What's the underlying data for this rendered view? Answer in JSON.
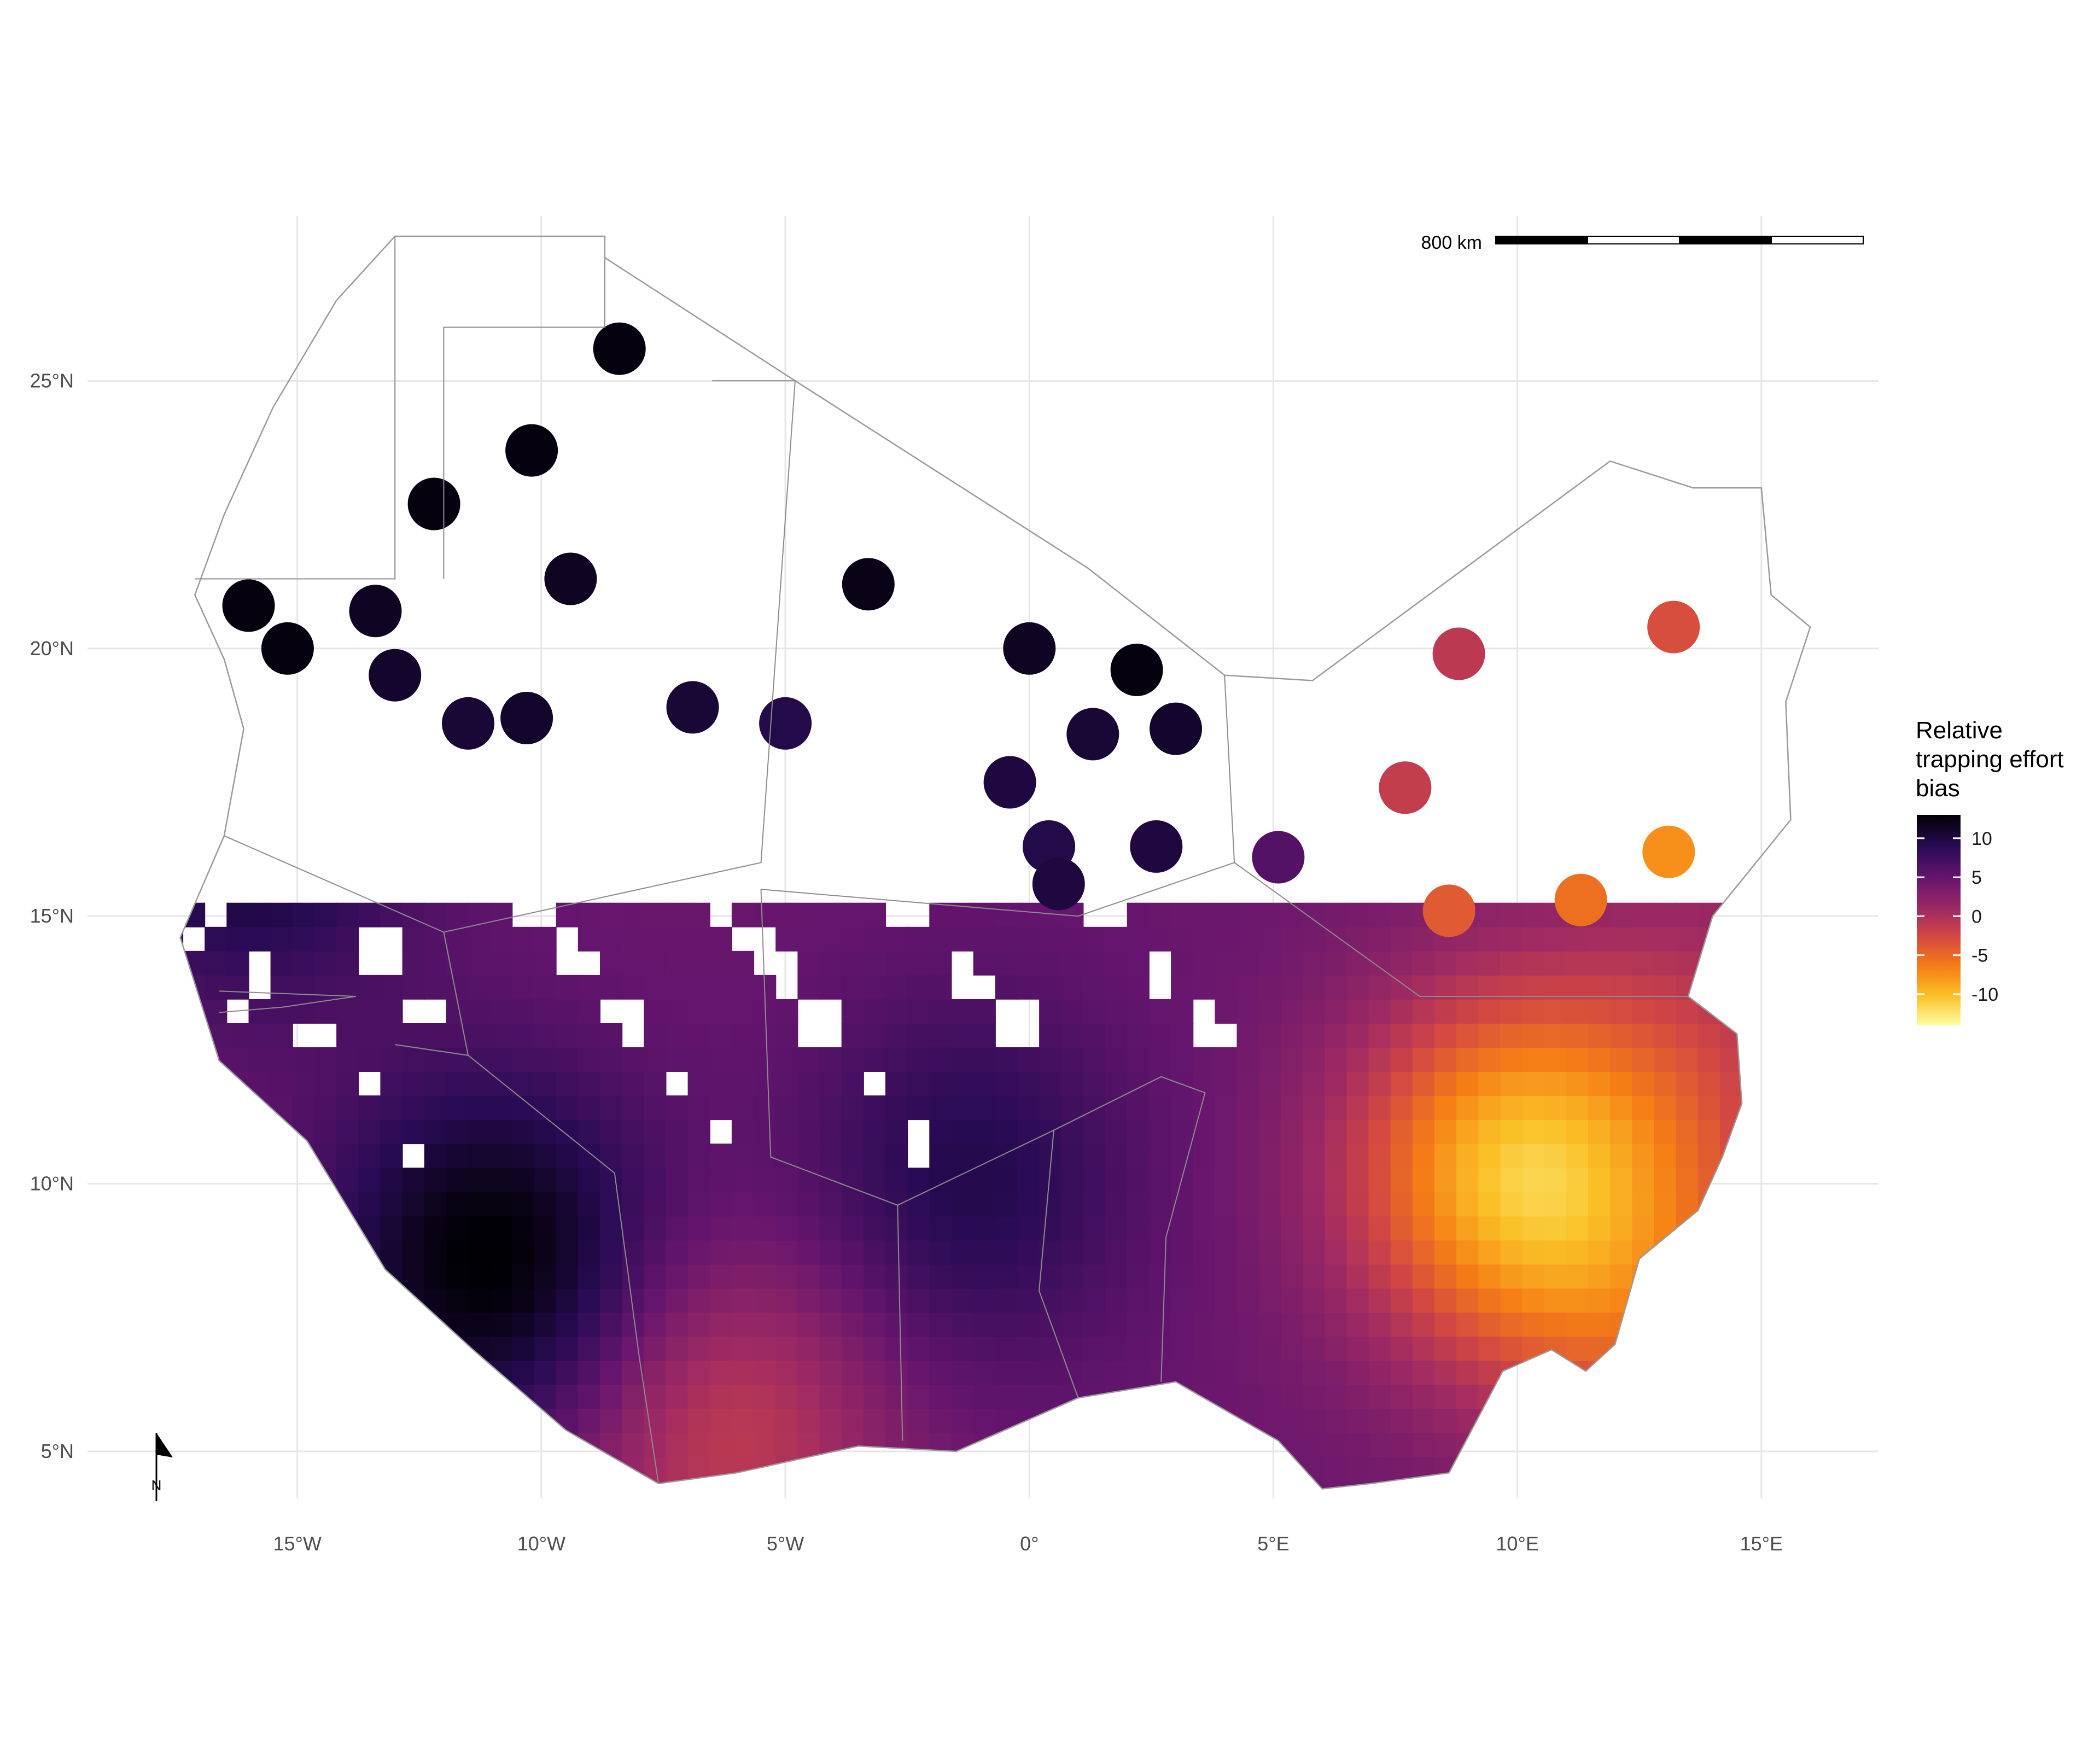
{
  "map": {
    "title": "",
    "x_axis": {
      "unit": "longitude",
      "ticks": [
        {
          "value": -15,
          "label": "15°W"
        },
        {
          "value": -10,
          "label": "10°W"
        },
        {
          "value": -5,
          "label": "5°W"
        },
        {
          "value": 0,
          "label": "0°"
        },
        {
          "value": 5,
          "label": "5°E"
        },
        {
          "value": 10,
          "label": "10°E"
        },
        {
          "value": 15,
          "label": "15°E"
        }
      ]
    },
    "y_axis": {
      "unit": "latitude",
      "ticks": [
        {
          "value": 25,
          "label": "25°N"
        },
        {
          "value": 20,
          "label": "20°N"
        },
        {
          "value": 15,
          "label": "15°N"
        },
        {
          "value": 10,
          "label": "10°N"
        },
        {
          "value": 5,
          "label": "5°N"
        }
      ]
    },
    "x_range": [
      -19.3,
      17.4
    ],
    "y_range": [
      3.1,
      29.1
    ],
    "grid": true,
    "colormap": "inferno",
    "legend": {
      "title_lines": [
        "Relative",
        "trapping effort",
        "bias"
      ],
      "ticks": [
        {
          "value": 10,
          "label": "10"
        },
        {
          "value": 5,
          "label": "5"
        },
        {
          "value": 0,
          "label": "0"
        },
        {
          "value": -5,
          "label": "-5"
        },
        {
          "value": -10,
          "label": "-10"
        }
      ],
      "range": [
        -14,
        13
      ],
      "placement": "right"
    },
    "scale_bar": {
      "label": "800 km"
    },
    "north_arrow": {
      "label": "N"
    },
    "bias_clusters": [
      {
        "lon": -8.4,
        "lat": 25.6,
        "value": 12.5
      },
      {
        "lon": -10.2,
        "lat": 23.7,
        "value": 12.5
      },
      {
        "lon": -12.2,
        "lat": 22.7,
        "value": 12.5
      },
      {
        "lon": -9.4,
        "lat": 21.3,
        "value": 11.5
      },
      {
        "lon": -3.3,
        "lat": 21.2,
        "value": 12.0
      },
      {
        "lon": -16.0,
        "lat": 20.8,
        "value": 12.5
      },
      {
        "lon": -13.4,
        "lat": 20.7,
        "value": 11.5
      },
      {
        "lon": -15.2,
        "lat": 20.0,
        "value": 12.5
      },
      {
        "lon": 0.0,
        "lat": 20.0,
        "value": 11.5
      },
      {
        "lon": 2.2,
        "lat": 19.6,
        "value": 12.5
      },
      {
        "lon": -13.0,
        "lat": 19.5,
        "value": 11.0
      },
      {
        "lon": -6.9,
        "lat": 18.9,
        "value": 10.5
      },
      {
        "lon": -10.3,
        "lat": 18.7,
        "value": 11.0
      },
      {
        "lon": -11.5,
        "lat": 18.6,
        "value": 10.5
      },
      {
        "lon": -5.0,
        "lat": 18.6,
        "value": 9.5
      },
      {
        "lon": 1.3,
        "lat": 18.4,
        "value": 10.5
      },
      {
        "lon": 3.0,
        "lat": 18.5,
        "value": 11.0
      },
      {
        "lon": -0.4,
        "lat": 17.5,
        "value": 10.0
      },
      {
        "lon": 0.4,
        "lat": 16.3,
        "value": 9.5
      },
      {
        "lon": 2.6,
        "lat": 16.3,
        "value": 10.0
      },
      {
        "lon": 0.6,
        "lat": 15.6,
        "value": 10.0
      },
      {
        "lon": 5.1,
        "lat": 16.1,
        "value": 6.0
      },
      {
        "lon": 8.8,
        "lat": 19.9,
        "value": -1.0
      },
      {
        "lon": 13.2,
        "lat": 20.4,
        "value": -3.0
      },
      {
        "lon": 7.7,
        "lat": 17.4,
        "value": -1.5
      },
      {
        "lon": 13.1,
        "lat": 16.2,
        "value": -7.5
      },
      {
        "lon": 11.3,
        "lat": 15.3,
        "value": -5.5
      },
      {
        "lon": 8.6,
        "lat": 15.1,
        "value": -4.0
      }
    ],
    "bias_field": [
      {
        "lon": -11.2,
        "lat": 8.3,
        "weight": 9.0
      },
      {
        "lon": -16.3,
        "lat": 16.8,
        "weight": 7.0
      },
      {
        "lon": -1.5,
        "lat": 9.8,
        "weight": 5.0
      },
      {
        "lon": -6.5,
        "lat": 5.2,
        "weight": -6.0
      },
      {
        "lon": 9.7,
        "lat": 10.0,
        "weight": -14.0
      },
      {
        "lon": 13.0,
        "lat": 7.0,
        "weight": -6.0
      },
      {
        "lon": 14.0,
        "lat": 12.5,
        "weight": -4.0
      }
    ]
  }
}
